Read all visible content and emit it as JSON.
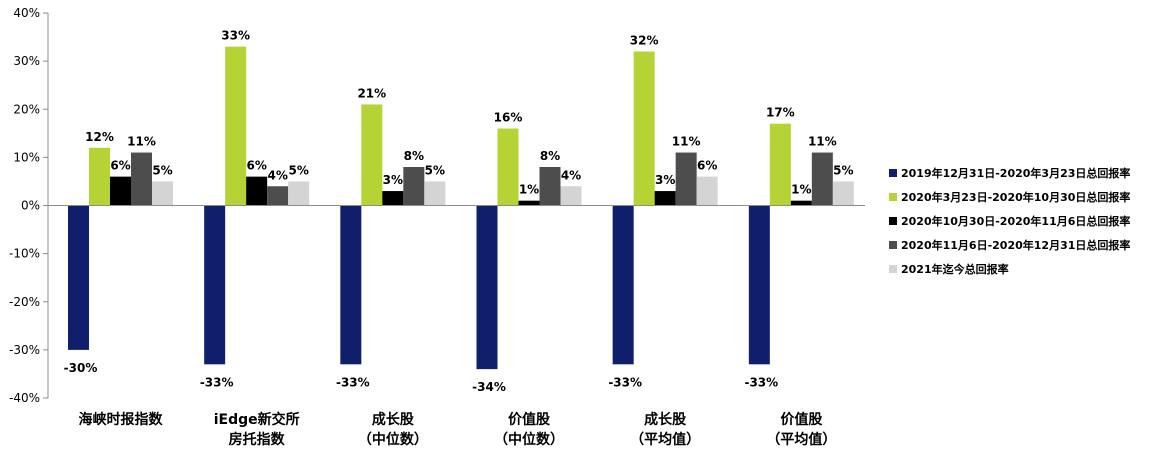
{
  "chart_data": {
    "type": "bar",
    "categories": [
      [
        "海峡时报指数"
      ],
      [
        "iEdge新交所",
        "房托指数"
      ],
      [
        "成长股",
        "（中位数）"
      ],
      [
        "价值股",
        "（中位数）"
      ],
      [
        "成长股",
        "（平均值）"
      ],
      [
        "价值股",
        "（平均值）"
      ]
    ],
    "series": [
      {
        "name": "2019年12月31日-2020年3月23日总回报率",
        "color": "#0f1f6b",
        "values": [
          -30,
          -33,
          -33,
          -34,
          -33,
          -33
        ],
        "labels": [
          "-30%",
          "-33%",
          "-33%",
          "-34%",
          "-33%",
          "-33%"
        ]
      },
      {
        "name": "2020年3月23日-2020年10月30日总回报率",
        "color": "#b5d334",
        "values": [
          12,
          33,
          21,
          16,
          32,
          17
        ],
        "labels": [
          "12%",
          "33%",
          "21%",
          "16%",
          "32%",
          "17%"
        ]
      },
      {
        "name": "2020年10月30日-2020年11月6日总回报率",
        "color": "#000000",
        "values": [
          6,
          6,
          3,
          1,
          3,
          1
        ],
        "labels": [
          "6%",
          "6%",
          "3%",
          "1%",
          "3%",
          "1%"
        ]
      },
      {
        "name": "2020年11月6日-2020年12月31日总回报率",
        "color": "#4d4d4d",
        "values": [
          11,
          4,
          8,
          8,
          11,
          11
        ],
        "labels": [
          "11%",
          "4%",
          "8%",
          "8%",
          "11%",
          "11%"
        ]
      },
      {
        "name": "2021年迄今总回报率",
        "color": "#d4d4d4",
        "values": [
          5,
          5,
          5,
          4,
          6,
          5
        ],
        "labels": [
          "5%",
          "5%",
          "5%",
          "4%",
          "6%",
          "5%"
        ]
      }
    ],
    "y_ticks": [
      "-40%",
      "-30%",
      "-20%",
      "-10%",
      "0%",
      "10%",
      "20%",
      "30%",
      "40%"
    ],
    "ylim": [
      -40,
      40
    ],
    "ystep": 10,
    "grid": false,
    "legend_position": "right"
  }
}
